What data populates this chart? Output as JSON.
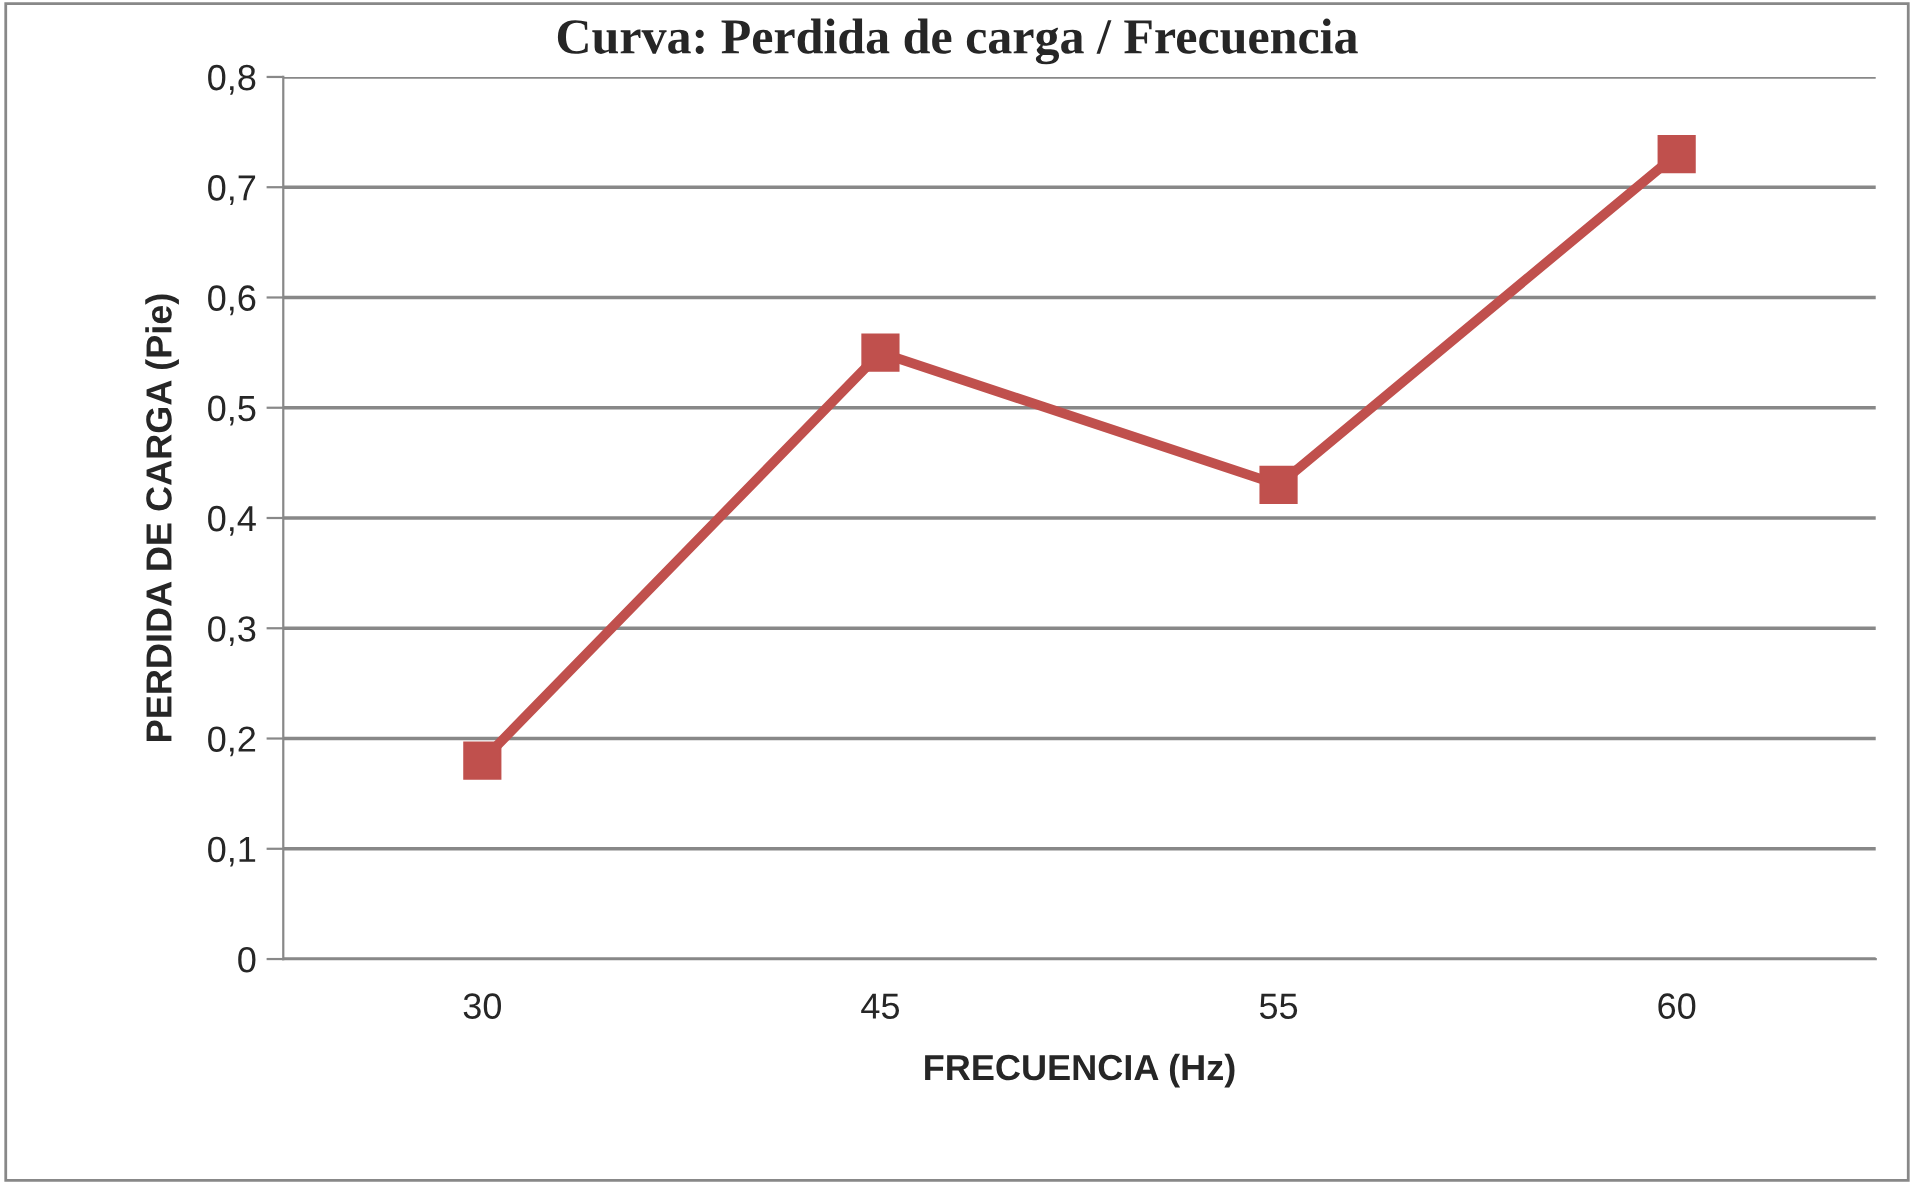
{
  "chart_data": {
    "type": "line",
    "title": "Curva: Perdida de carga / Frecuencia",
    "xlabel": "FRECUENCIA (Hz)",
    "ylabel": "PERDIDA DE CARGA (Pie)",
    "categories": [
      "30",
      "45",
      "55",
      "60"
    ],
    "series": [
      {
        "color": "#c0504d",
        "values": [
          0.18,
          0.55,
          0.43,
          0.73
        ]
      }
    ],
    "ylim": [
      0,
      0.8
    ],
    "yticks": [
      0,
      {
        "value": 0.1,
        "label": "0,1"
      },
      {
        "value": 0.2,
        "label": "0,2"
      },
      {
        "value": 0.3,
        "label": "0,3"
      },
      {
        "value": 0.4,
        "label": "0,4"
      },
      {
        "value": 0.5,
        "label": "0,5"
      },
      {
        "value": 0.6,
        "label": "0,6"
      },
      {
        "value": 0.7,
        "label": "0,7"
      },
      {
        "value": 0.8,
        "label": "0,8"
      }
    ],
    "grid": "y",
    "marker": "square",
    "line_style": "solid",
    "legend": false
  }
}
